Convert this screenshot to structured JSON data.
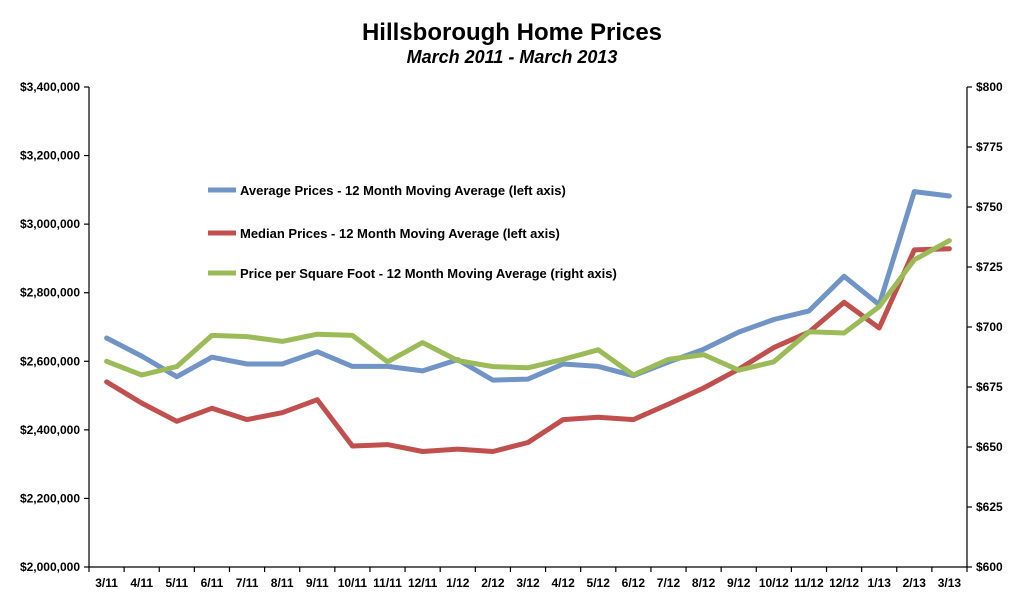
{
  "chart_data": {
    "type": "line",
    "title": "Hillsborough Home Prices",
    "subtitle": "March 2011 - March 2013",
    "categories": [
      "3/11",
      "4/11",
      "5/11",
      "6/11",
      "7/11",
      "8/11",
      "9/11",
      "10/11",
      "11/11",
      "12/11",
      "1/12",
      "2/12",
      "3/12",
      "4/12",
      "5/12",
      "6/12",
      "7/12",
      "8/12",
      "9/12",
      "10/12",
      "11/12",
      "12/12",
      "1/13",
      "2/13",
      "3/13"
    ],
    "left_axis": {
      "ylim": [
        2000000,
        3400000
      ],
      "ticks": [
        2000000,
        2200000,
        2400000,
        2600000,
        2800000,
        3000000,
        3200000,
        3400000
      ],
      "tick_labels": [
        "$2,000,000",
        "$2,200,000",
        "$2,400,000",
        "$2,600,000",
        "$2,800,000",
        "$3,000,000",
        "$3,200,000",
        "$3,400,000"
      ]
    },
    "right_axis": {
      "ylim": [
        600,
        800
      ],
      "ticks": [
        600,
        625,
        650,
        675,
        700,
        725,
        750,
        775,
        800
      ],
      "tick_labels": [
        "$600",
        "$625",
        "$650",
        "$675",
        "$700",
        "$725",
        "$750",
        "$775",
        "$800"
      ]
    },
    "legend_position": "upper-left",
    "grid": false,
    "series": [
      {
        "name": "Average Prices - 12 Month Moving Average (left axis)",
        "axis": "left",
        "color": "#7094c5",
        "values": [
          2668000,
          2615000,
          2555000,
          2612000,
          2592000,
          2592000,
          2628000,
          2585000,
          2585000,
          2572000,
          2605000,
          2545000,
          2548000,
          2592000,
          2585000,
          2558000,
          2598000,
          2635000,
          2685000,
          2722000,
          2747000,
          2848000,
          2765000,
          3095000,
          3082000
        ]
      },
      {
        "name": "Median Prices - 12 Month Moving Average (left axis)",
        "axis": "left",
        "color": "#c0504d",
        "values": [
          2540000,
          2478000,
          2425000,
          2463000,
          2430000,
          2450000,
          2488000,
          2353000,
          2357000,
          2337000,
          2344000,
          2337000,
          2363000,
          2430000,
          2437000,
          2430000,
          2475000,
          2522000,
          2577000,
          2640000,
          2685000,
          2772000,
          2697000,
          2925000,
          2928000
        ]
      },
      {
        "name": "Price per Square Foot - 12 Month Moving Average (right axis)",
        "axis": "right",
        "color": "#9bbb59",
        "values": [
          685.7,
          680,
          683.5,
          696.5,
          696,
          694,
          697,
          696.5,
          685.5,
          693.5,
          686,
          683.5,
          683,
          686.5,
          690.5,
          680,
          686.5,
          688.5,
          682,
          685.5,
          698,
          697.5,
          708.5,
          728,
          736
        ]
      }
    ]
  }
}
